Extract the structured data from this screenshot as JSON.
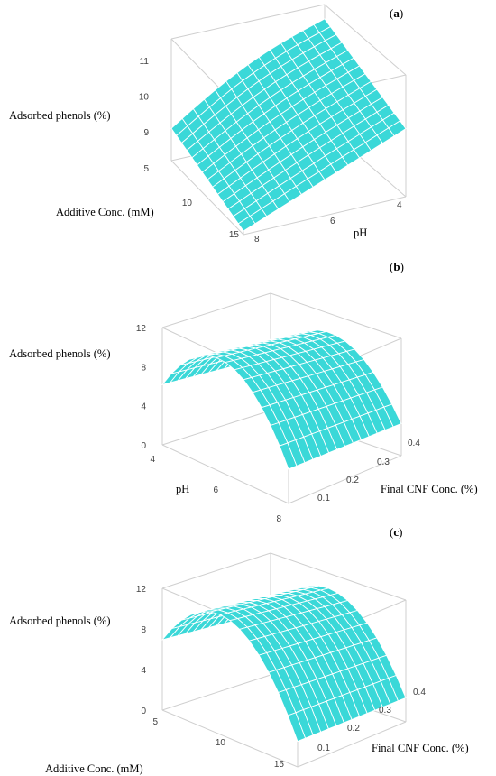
{
  "chart_data": [
    {
      "panel": "a",
      "type": "surface",
      "zlabel": "Adsorbed phenols (%)",
      "xlabel": "Additive Conc. (mM)",
      "ylabel": "pH",
      "z_ticks": [
        "9",
        "10",
        "11"
      ],
      "x_ticks": [
        "5",
        "10",
        "15"
      ],
      "y_ticks": [
        "8",
        "6",
        "4"
      ],
      "x_range": [
        5,
        15
      ],
      "y_range": [
        8,
        4
      ],
      "z_range": [
        8.2,
        11.6
      ],
      "x": [
        5,
        15
      ],
      "y": [
        8,
        4
      ],
      "corners_z": {
        "x_min_y_min": 11.2,
        "x_min_y_max": 10.1,
        "x_max_y_min": 9.1,
        "x_max_y_max": 8.3
      },
      "color": "#3ad8d8"
    },
    {
      "panel": "b",
      "type": "surface",
      "zlabel": "Adsorbed phenols (%)",
      "xlabel": "pH",
      "ylabel": "Final CNF Conc. (%)",
      "z_ticks": [
        "0",
        "4",
        "8",
        "12"
      ],
      "x_ticks": [
        "4",
        "6",
        "8"
      ],
      "y_ticks": [
        "0.1",
        "0.2",
        "0.3",
        "0.4"
      ],
      "x_range": [
        4,
        8
      ],
      "y_range": [
        0.1,
        0.4
      ],
      "z_range": [
        0,
        12
      ],
      "peak_z": 11.5,
      "edge_z": 2.0,
      "color": "#3ad8d8"
    },
    {
      "panel": "c",
      "type": "surface",
      "zlabel": "Adsorbed phenols (%)",
      "xlabel": "Additive Conc. (mM)",
      "ylabel": "Final CNF Conc. (%)",
      "z_ticks": [
        "0",
        "4",
        "8",
        "12"
      ],
      "x_ticks": [
        "5",
        "10",
        "15"
      ],
      "y_ticks": [
        "0.1",
        "0.2",
        "0.3",
        "0.4"
      ],
      "x_range": [
        5,
        15
      ],
      "y_range": [
        0.1,
        0.4
      ],
      "z_range": [
        0,
        12
      ],
      "peak_z": 11.8,
      "edge_z": 1.2,
      "color": "#3ad8d8"
    }
  ]
}
